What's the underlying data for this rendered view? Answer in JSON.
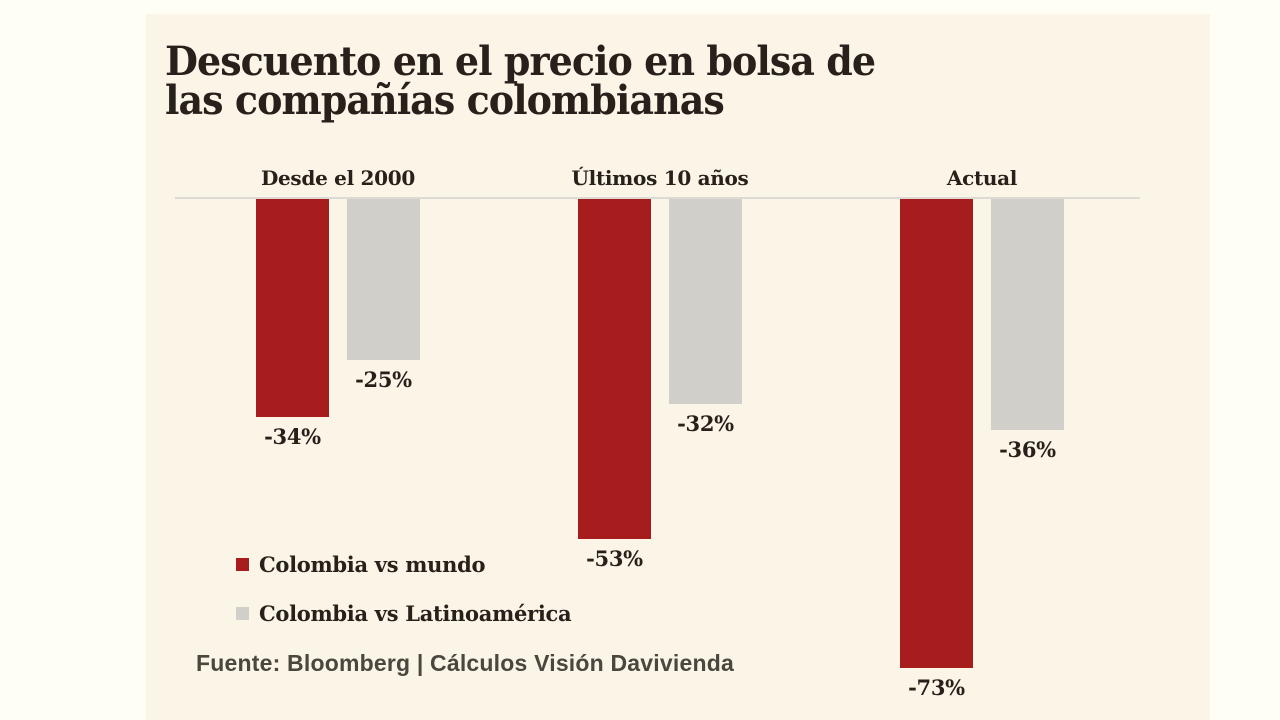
{
  "page": {
    "background": "#FFFEF5",
    "panel_background": "#FAF5E6"
  },
  "title": {
    "full": "Descuento en el precio en bolsa de las compañías colombianas",
    "lines": [
      "Descuento en el precio en bolsa de",
      "las compañías colombianas"
    ]
  },
  "source": "Fuente: Bloomberg | Cálculos Visión Davivienda",
  "chart_data": {
    "type": "bar",
    "orientation": "vertical",
    "title": "Descuento en el precio en bolsa de las compañías colombianas",
    "categories": [
      "Desde el 2000",
      "Últimos 10 años",
      "Actual"
    ],
    "series": [
      {
        "name": "Colombia vs mundo",
        "color": "#A71D1D",
        "values": [
          -34,
          -53,
          -73
        ]
      },
      {
        "name": "Colombia vs Latinoamérica",
        "color": "#D0CFCA",
        "values": [
          -25,
          -32,
          -36
        ]
      }
    ],
    "value_label_format": "{value}%",
    "ylim": [
      -80,
      0
    ],
    "baseline": 0,
    "grid": false,
    "legend_position": "bottom-left",
    "axis_line_color": "#DCDAD2",
    "text_color": "#27201B",
    "source": "Fuente: Bloomberg | Cálculos Visión Davivienda"
  }
}
